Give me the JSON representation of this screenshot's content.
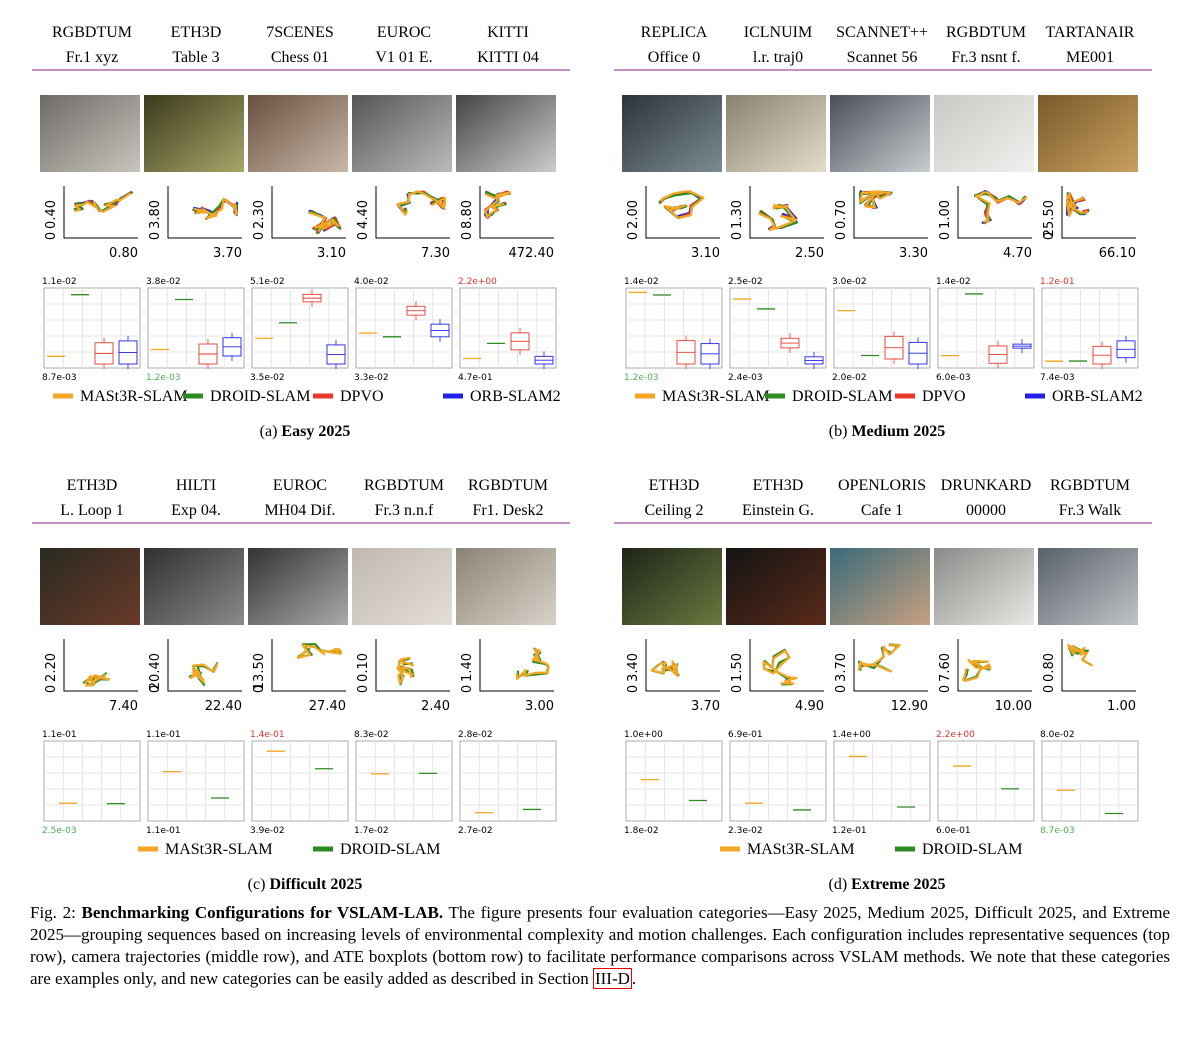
{
  "panels": [
    {
      "label": "(a)",
      "title": "Easy 2025",
      "legend": [
        {
          "name": "MASt3R-SLAM",
          "color": "#f5a623"
        },
        {
          "name": "DROID-SLAM",
          "color": "#2e8b22"
        },
        {
          "name": "DPVO",
          "color": "#e8392a"
        },
        {
          "name": "ORB-SLAM2",
          "color": "#2020e6"
        }
      ],
      "columns": [
        {
          "dataset": "RGBDTUM",
          "sequence": "Fr.1 xyz",
          "y_ticks": [
            "0",
            "0.40"
          ],
          "x_label": "0.80",
          "box_top": "1.1e-02",
          "box_bottom": "8.7e-03"
        },
        {
          "dataset": "ETH3D",
          "sequence": "Table 3",
          "y_ticks": [
            "0",
            "3.80"
          ],
          "x_label": "3.70",
          "box_top": "3.8e-02",
          "box_bottom": "1.2e-03",
          "box_bottom_color": "#4caf50"
        },
        {
          "dataset": "7SCENES",
          "sequence": "Chess 01",
          "y_ticks": [
            "0",
            "2.30"
          ],
          "x_label": "3.10",
          "box_top": "5.1e-02",
          "box_bottom": "3.5e-02"
        },
        {
          "dataset": "EUROC",
          "sequence": "V1 01 E.",
          "y_ticks": [
            "0",
            "4.40"
          ],
          "x_label": "7.30",
          "box_top": "4.0e-02",
          "box_bottom": "3.3e-02"
        },
        {
          "dataset": "KITTI",
          "sequence": "KITTI 04",
          "y_ticks": [
            "0",
            "8.80"
          ],
          "x_label": "472.40",
          "box_top": "2.2e+00",
          "box_top_color": "#d9372a",
          "box_bottom": "4.7e-01"
        }
      ]
    },
    {
      "label": "(b)",
      "title": "Medium 2025",
      "legend": [
        {
          "name": "MASt3R-SLAM",
          "color": "#f5a623"
        },
        {
          "name": "DROID-SLAM",
          "color": "#2e8b22"
        },
        {
          "name": "DPVO",
          "color": "#e8392a"
        },
        {
          "name": "ORB-SLAM2",
          "color": "#2020e6"
        }
      ],
      "columns": [
        {
          "dataset": "REPLICA",
          "sequence": "Office 0",
          "y_ticks": [
            "0",
            "2.00"
          ],
          "x_label": "3.10",
          "box_top": "1.4e-02",
          "box_bottom": "1.2e-03",
          "box_bottom_color": "#4caf50"
        },
        {
          "dataset": "ICLNUIM",
          "sequence": "l.r. traj0",
          "y_ticks": [
            "0",
            "1.30"
          ],
          "x_label": "2.50",
          "box_top": "2.5e-02",
          "box_bottom": "2.4e-03"
        },
        {
          "dataset": "SCANNET++",
          "sequence": "Scannet 56",
          "y_ticks": [
            "0",
            "0.70"
          ],
          "x_label": "3.30",
          "box_top": "3.0e-02",
          "box_bottom": "2.0e-02"
        },
        {
          "dataset": "RGBDTUM",
          "sequence": "Fr.3 nsnt f.",
          "y_ticks": [
            "0",
            "1.00"
          ],
          "x_label": "4.70",
          "box_top": "1.4e-02",
          "box_bottom": "6.0e-03"
        },
        {
          "dataset": "TARTANAIR",
          "sequence": "ME001",
          "y_ticks": [
            "0",
            "25.50"
          ],
          "x_label": "66.10",
          "box_top": "1.2e-01",
          "box_top_color": "#d9372a",
          "box_bottom": "7.4e-03"
        }
      ]
    },
    {
      "label": "(c)",
      "title": "Difficult 2025",
      "legend": [
        {
          "name": "MASt3R-SLAM",
          "color": "#f5a623"
        },
        {
          "name": "DROID-SLAM",
          "color": "#2e8b22"
        }
      ],
      "columns": [
        {
          "dataset": "ETH3D",
          "sequence": "L. Loop 1",
          "y_ticks": [
            "0",
            "2.20"
          ],
          "x_label": "7.40",
          "box_top": "1.1e-01",
          "box_bottom": "2.5e-03",
          "box_bottom_color": "#4caf50"
        },
        {
          "dataset": "HILTI",
          "sequence": "Exp 04.",
          "y_ticks": [
            "0",
            "20.40"
          ],
          "x_label": "22.40",
          "box_top": "1.1e-01",
          "box_bottom": "1.1e-01"
        },
        {
          "dataset": "EUROC",
          "sequence": "MH04 Dif.",
          "y_ticks": [
            "0",
            "13.50"
          ],
          "x_label": "27.40",
          "box_top": "1.4e-01",
          "box_top_color": "#d9372a",
          "box_bottom": "3.9e-02"
        },
        {
          "dataset": "RGBDTUM",
          "sequence": "Fr.3 n.n.f",
          "y_ticks": [
            "0",
            "0.10"
          ],
          "x_label": "2.40",
          "box_top": "8.3e-02",
          "box_bottom": "1.7e-02"
        },
        {
          "dataset": "RGBDTUM",
          "sequence": "Fr1. Desk2",
          "y_ticks": [
            "0",
            "1.40"
          ],
          "x_label": "3.00",
          "box_top": "2.8e-02",
          "box_bottom": "2.7e-02"
        }
      ]
    },
    {
      "label": "(d)",
      "title": "Extreme 2025",
      "legend": [
        {
          "name": "MASt3R-SLAM",
          "color": "#f5a623"
        },
        {
          "name": "DROID-SLAM",
          "color": "#2e8b22"
        }
      ],
      "columns": [
        {
          "dataset": "ETH3D",
          "sequence": "Ceiling 2",
          "y_ticks": [
            "0",
            "3.40"
          ],
          "x_label": "3.70",
          "box_top": "1.0e+00",
          "box_bottom": "1.8e-02"
        },
        {
          "dataset": "ETH3D",
          "sequence": "Einstein G.",
          "y_ticks": [
            "0",
            "1.50"
          ],
          "x_label": "4.90",
          "box_top": "6.9e-01",
          "box_bottom": "2.3e-02"
        },
        {
          "dataset": "OPENLORIS",
          "sequence": "Cafe 1",
          "y_ticks": [
            "0",
            "3.70"
          ],
          "x_label": "12.90",
          "box_top": "1.4e+00",
          "box_bottom": "1.2e-01"
        },
        {
          "dataset": "DRUNKARD",
          "sequence": "00000",
          "y_ticks": [
            "0",
            "7.60"
          ],
          "x_label": "10.00",
          "box_top": "2.2e+00",
          "box_top_color": "#d9372a",
          "box_bottom": "6.0e-01"
        },
        {
          "dataset": "RGBDTUM",
          "sequence": "Fr.3 Walk",
          "y_ticks": [
            "0",
            "0.80"
          ],
          "x_label": "1.00",
          "box_top": "8.0e-02",
          "box_bottom": "8.7e-03",
          "box_bottom_color": "#4caf50"
        }
      ]
    }
  ],
  "caption": {
    "label": "Fig. 2:",
    "title": "Benchmarking Configurations for VSLAM-LAB.",
    "text": "The figure presents four evaluation categories—Easy 2025, Medium 2025, Difficult 2025, and Extreme 2025—grouping sequences based on increasing levels of environmental complexity and motion challenges. Each configuration includes representative sequences (top row), camera trajectories (middle row), and ATE boxplots (bottom row) to facilitate performance comparisons across VSLAM methods. We note that these categories are examples only, and new categories can be easily added as described in Section",
    "link": "III-D",
    "end": "."
  }
}
